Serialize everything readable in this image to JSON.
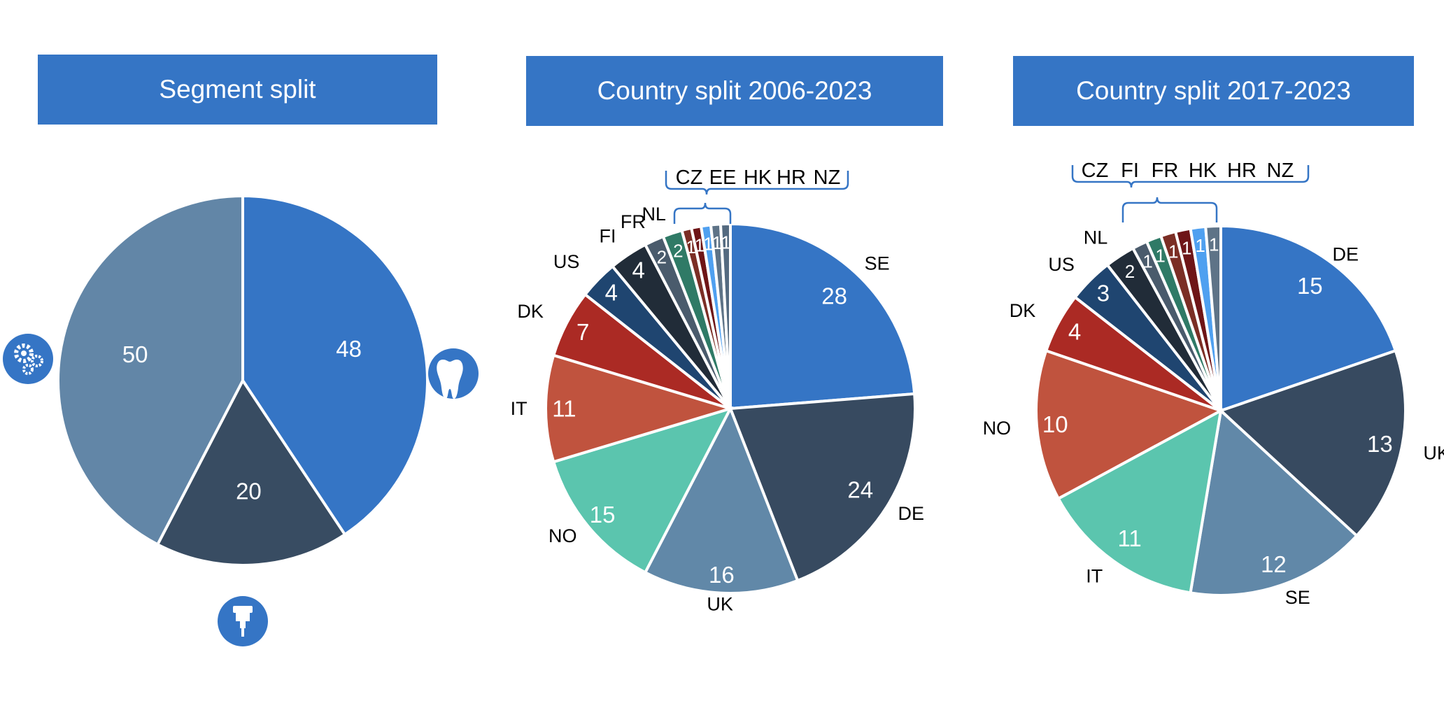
{
  "chart_data": [
    {
      "type": "pie",
      "title": "Segment split",
      "slices": [
        {
          "label": "Dental",
          "value": 48,
          "color": "#3575c5"
        },
        {
          "label": "Medical devices",
          "value": 20,
          "color": "#384c62"
        },
        {
          "label": "Industrial",
          "value": 50,
          "color": "#6286a7"
        }
      ],
      "icons": [
        "tooth-icon",
        "dental-drill-icon",
        "gears-icon"
      ]
    },
    {
      "type": "pie",
      "title": "Country split 2006-2023",
      "slices": [
        {
          "label": "SE",
          "value": 28,
          "color": "#3575c5"
        },
        {
          "label": "DE",
          "value": 24,
          "color": "#374a60"
        },
        {
          "label": "UK",
          "value": 16,
          "color": "#6188a8"
        },
        {
          "label": "NO",
          "value": 15,
          "color": "#5bc5ae"
        },
        {
          "label": "IT",
          "value": 11,
          "color": "#c0533e"
        },
        {
          "label": "DK",
          "value": 7,
          "color": "#ab2a24"
        },
        {
          "label": "US",
          "value": 4,
          "color": "#1f4570"
        },
        {
          "label": "FI",
          "value": 4,
          "color": "#212c38"
        },
        {
          "label": "FR",
          "value": 2,
          "color": "#4a5b6c"
        },
        {
          "label": "NL",
          "value": 2,
          "color": "#2f7a66"
        },
        {
          "label": "CZ",
          "value": 1,
          "color": "#7b2e25"
        },
        {
          "label": "EE",
          "value": 1,
          "color": "#6e1517"
        },
        {
          "label": "HK",
          "value": 1,
          "color": "#4fa0f0"
        },
        {
          "label": "HR",
          "value": 1,
          "color": "#5e7387"
        },
        {
          "label": "NZ",
          "value": 1,
          "color": "#546a80"
        }
      ],
      "bracket_labels": [
        "CZ",
        "EE",
        "HK",
        "HR",
        "NZ"
      ]
    },
    {
      "type": "pie",
      "title": "Country split 2017-2023",
      "slices": [
        {
          "label": "DE",
          "value": 15,
          "color": "#3575c5"
        },
        {
          "label": "UK",
          "value": 13,
          "color": "#374a60"
        },
        {
          "label": "SE",
          "value": 12,
          "color": "#6188a8"
        },
        {
          "label": "IT",
          "value": 11,
          "color": "#5bc5ae"
        },
        {
          "label": "NO",
          "value": 10,
          "color": "#c0533e"
        },
        {
          "label": "DK",
          "value": 4,
          "color": "#ab2a24"
        },
        {
          "label": "US",
          "value": 3,
          "color": "#1f4570"
        },
        {
          "label": "NL",
          "value": 2,
          "color": "#212c38"
        },
        {
          "label": "CZ",
          "value": 1,
          "color": "#4a5b6c"
        },
        {
          "label": "FI",
          "value": 1,
          "color": "#2f7a66"
        },
        {
          "label": "FR",
          "value": 1,
          "color": "#7b2e25"
        },
        {
          "label": "HK",
          "value": 1,
          "color": "#6e1517"
        },
        {
          "label": "HR",
          "value": 1,
          "color": "#4fa0f0"
        },
        {
          "label": "NZ",
          "value": 1,
          "color": "#5e7387"
        }
      ],
      "bracket_labels": [
        "CZ",
        "FI",
        "FR",
        "HK",
        "HR",
        "NZ"
      ]
    }
  ]
}
